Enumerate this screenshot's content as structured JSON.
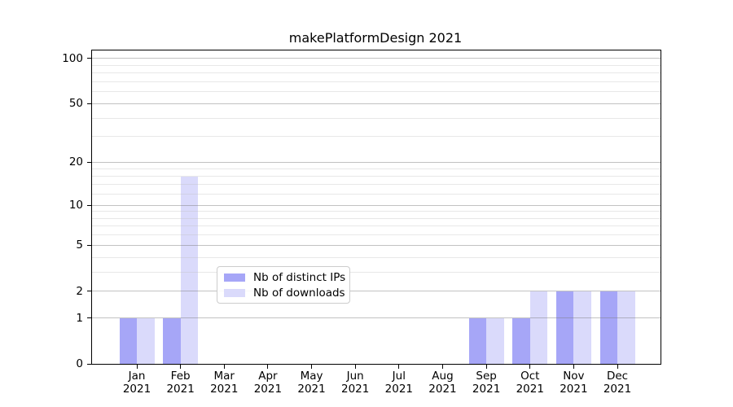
{
  "chart_data": {
    "type": "bar",
    "title": "makePlatformDesign 2021",
    "year_label": "2021",
    "months": [
      "Jan",
      "Feb",
      "Mar",
      "Apr",
      "May",
      "Jun",
      "Jul",
      "Aug",
      "Sep",
      "Oct",
      "Nov",
      "Dec"
    ],
    "series": [
      {
        "name": "Nb of distinct IPs",
        "color": "#a6a6f7",
        "values": [
          1,
          1,
          0,
          0,
          0,
          0,
          0,
          0,
          1,
          1,
          2,
          2
        ]
      },
      {
        "name": "Nb of downloads",
        "color": "#dadafb",
        "values": [
          1,
          16,
          0,
          0,
          0,
          0,
          0,
          0,
          1,
          2,
          2,
          2
        ]
      }
    ],
    "y_axis": {
      "scale": "log1p",
      "major_ticks": [
        0,
        1,
        2,
        5,
        10,
        20,
        50,
        100
      ],
      "minor_gridlines": [
        3,
        4,
        6,
        7,
        8,
        9,
        12,
        14,
        16,
        18,
        30,
        40,
        60,
        70,
        80,
        90
      ],
      "ylim": [
        0,
        113
      ]
    },
    "xlabel": "",
    "ylabel": "",
    "legend": {
      "position": "lower center"
    },
    "grid": "both",
    "colors": {
      "axis": "#000000",
      "major_grid": "#bdbdbd",
      "minor_grid": "#e3e3e3",
      "background": "#ffffff"
    }
  }
}
